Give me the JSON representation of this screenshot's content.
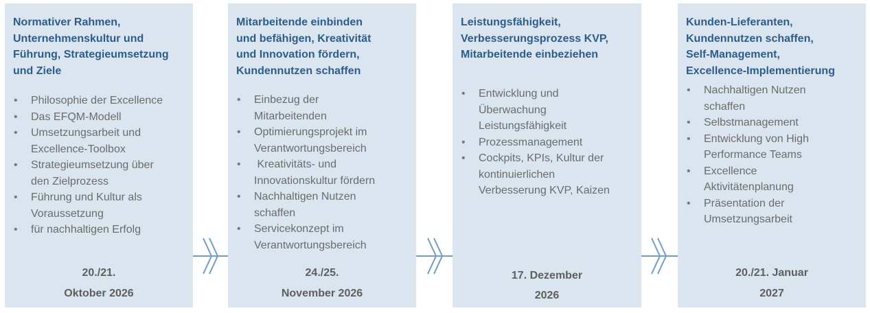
{
  "cards": [
    {
      "title": "Normativer Rahmen, Unternehmenskultur und Führung, Strategieumsetzung und Ziele",
      "title_lines": [
        "Normativer Rahmen,",
        "Unternehmenskultur und",
        "Führung, Strategieumsetzung",
        "und Ziele"
      ],
      "bullets": [
        [
          "Philosophie der Excellence"
        ],
        [
          "Das EFQM-Modell"
        ],
        [
          "Umsetzungsarbeit und",
          "Excellence-Toolbox"
        ],
        [
          "Strategieumsetzung über",
          "den Zielprozess"
        ],
        [
          "Führung und Kultur als",
          "Voraussetzung"
        ],
        [
          "für nachhaltigen Erfolg"
        ]
      ],
      "date_lines": [
        "20./21.",
        "Oktober 2026"
      ]
    },
    {
      "title": "Mitarbeitende einbinden und befähigen, Kreativität und Innovation fördern, Kundennutzen schaffen",
      "title_lines": [
        "Mitarbeitende einbinden",
        "und befähigen, Kreativität",
        "und Innovation fördern,",
        "Kundennutzen schaffen"
      ],
      "bullets": [
        [
          "Einbezug der",
          "Mitarbeitenden"
        ],
        [
          "Optimierungsprojekt im",
          "Verantwortungsbereich"
        ],
        [
          " Kreativitäts- und",
          "Innovationskultur fördern"
        ],
        [
          "Nachhaltigen Nutzen",
          "schaffen"
        ],
        [
          "Servicekonzept im",
          "Verantwortungsbereich"
        ]
      ],
      "date_lines": [
        "24./25.",
        "November 2026"
      ]
    },
    {
      "title": "Leistungsfähigkeit, Verbesserungsprozess KVP, Mitarbeitende einbeziehen",
      "title_lines": [
        "Leistungsfähigkeit,",
        "Verbesserungsprozess KVP,",
        "Mitarbeitende einbeziehen"
      ],
      "bullets": [
        [
          "Entwicklung und",
          "Überwachung",
          "Leistungsfähigkeit"
        ],
        [
          "Prozessmanagement"
        ],
        [
          "Cockpits, KPIs, Kultur der",
          "kontinuierlichen",
          "Verbesserung KVP, Kaizen"
        ]
      ],
      "date_lines": [
        "17. Dezember",
        "2026"
      ]
    },
    {
      "title": "Kunden-Lieferanten, Kundennutzen schaffen, Self-Management, Excellence-Implementierung",
      "title_lines": [
        "Kunden-Lieferanten,",
        "Kundennutzen schaffen,",
        "Self-Management,",
        "Excellence-Implementierung"
      ],
      "bullets": [
        [
          "Nachhaltigen Nutzen",
          "schaffen"
        ],
        [
          "Selbstmanagement"
        ],
        [
          "Entwicklung von High",
          "Performance Teams"
        ],
        [
          "Excellence",
          "Aktivitätenplanung"
        ],
        [
          "Präsentation der",
          "Umsetzungsarbeit"
        ]
      ],
      "date_lines": [
        "20./21. Januar",
        "2027"
      ]
    }
  ],
  "colors": {
    "card_bg": "#dbe5ef",
    "title": "#2e5c8a",
    "body_text": "#6b6b6b",
    "date_text": "#5e5e5e",
    "timeline": "#6f9bc9"
  },
  "icons": {
    "separator": "double-chevron-right-icon",
    "timeline_end": "arrow-head-icon"
  }
}
